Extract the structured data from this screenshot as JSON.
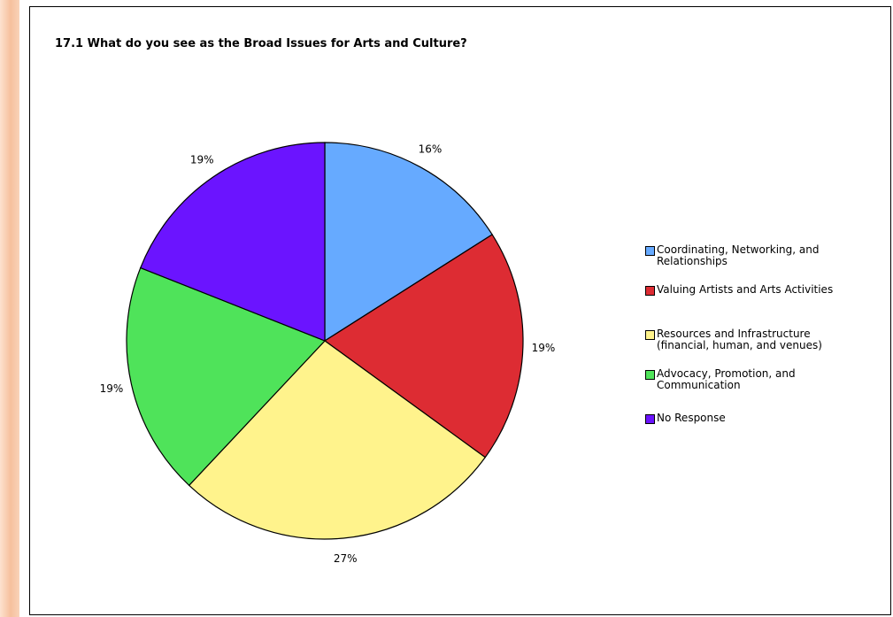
{
  "chart_data": {
    "type": "pie",
    "title": "17.1  What do you see as the Broad Issues for Arts and Culture?",
    "series": [
      {
        "name": "Coordinating, Networking, and Relationships",
        "legend_label": "Coordinating, Networking, and\nRelationships",
        "value": 16,
        "label": "16%",
        "color": "#66aaff"
      },
      {
        "name": "Valuing Artists and Arts Activities",
        "legend_label": "Valuing Artists and Arts Activities",
        "value": 19,
        "label": "19%",
        "color": "#dd2c33"
      },
      {
        "name": "Resources and Infrastructure (financial, human, and venues)",
        "legend_label": "Resources and Infrastructure\n(financial, human, and venues)",
        "value": 27,
        "label": "27%",
        "color": "#fff38c"
      },
      {
        "name": "Advocacy, Promotion, and Communication",
        "legend_label": "Advocacy, Promotion, and\nCommunication",
        "value": 19,
        "label": "19%",
        "color": "#4fe35a"
      },
      {
        "name": "No Response",
        "legend_label": "No Response",
        "value": 19,
        "label": "19%",
        "color": "#6b14ff"
      }
    ],
    "legend_position": "right",
    "start": "12 o'clock, clockwise"
  },
  "colors": {
    "frame_border": "#000000",
    "page_stripe": "#f6c09d"
  }
}
